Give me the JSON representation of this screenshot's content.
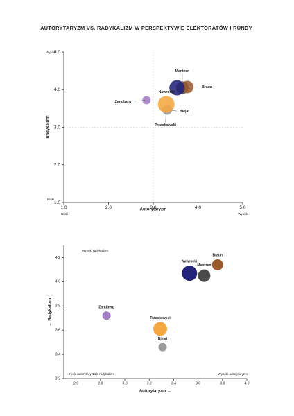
{
  "title": "AUTORYTARYZM VS. RADYKALIZM W PERSPEKTYWIE ELEKTORATÓW I RUNDY",
  "chart_data": [
    {
      "type": "bubble",
      "xlabel": "Autorytaryzm",
      "ylabel": "Radykalizm",
      "xlim": [
        1,
        5
      ],
      "ylim": [
        1,
        5
      ],
      "xticks": [
        {
          "value": 1,
          "label": "1.0"
        },
        {
          "value": 2,
          "label": "2.0"
        },
        {
          "value": 3,
          "label": "3.0"
        },
        {
          "value": 4,
          "label": "4.0"
        },
        {
          "value": 5,
          "label": "5.0"
        }
      ],
      "yticks": [
        {
          "value": 1,
          "label": "1.0"
        },
        {
          "value": 2,
          "label": "2.0"
        },
        {
          "value": 3,
          "label": "3.0"
        },
        {
          "value": 4,
          "label": "4.0"
        },
        {
          "value": 5,
          "label": "5.0"
        }
      ],
      "midlines": {
        "x": 3,
        "y": 3
      },
      "corner_labels": [
        "Wysoki",
        "Niski",
        "Niski",
        "Wysoki"
      ],
      "points": [
        {
          "name": "Mentzen",
          "color": "#454545",
          "x": 3.65,
          "y": 4.05,
          "size": 9
        },
        {
          "name": "Braun",
          "color": "#9a5a2c",
          "x": 3.76,
          "y": 4.07,
          "size": 9
        },
        {
          "name": "Nawrocki",
          "color": "#24237a",
          "x": 3.53,
          "y": 4.05,
          "size": 11
        },
        {
          "name": "Zandberg",
          "color": "#a07cc2",
          "x": 2.85,
          "y": 3.72,
          "size": 6
        },
        {
          "name": "Biejat",
          "color": "#9a9a9a",
          "x": 3.31,
          "y": 3.46,
          "size": 7
        },
        {
          "name": "Trzaskowski",
          "color": "#f5a742",
          "x": 3.29,
          "y": 3.61,
          "size": 12
        }
      ]
    },
    {
      "type": "bubble",
      "xlabel": "Autorytaryzm →",
      "ylabel": "← Radykalizm",
      "xlim": [
        2.5,
        4
      ],
      "ylim": [
        3.2,
        4.3
      ],
      "xticks": [
        2.6,
        2.8,
        {
          "value": 3,
          "label": "3.0"
        },
        3.2,
        3.4,
        3.6,
        3.8,
        {
          "value": 4,
          "label": "4.0"
        }
      ],
      "yticks": [
        3.2,
        3.4,
        3.6,
        3.8,
        {
          "value": 4,
          "label": "4.0"
        },
        4.2
      ],
      "corner_labels": [
        "Wysoki radykalizm",
        "Niski autorytaryzm",
        "Niski radykalizm",
        "Wysoki autorytaryzm"
      ],
      "points": [
        {
          "name": "Braun",
          "color": "#9a5a2c",
          "x": 3.76,
          "y": 4.14,
          "size": 8
        },
        {
          "name": "Mentzen",
          "color": "#4a4a4a",
          "x": 3.65,
          "y": 4.05,
          "size": 9
        },
        {
          "name": "Nawrocki",
          "color": "#24237a",
          "x": 3.53,
          "y": 4.07,
          "size": 11
        },
        {
          "name": "Zandberg",
          "color": "#a07cc2",
          "x": 2.85,
          "y": 3.72,
          "size": 6
        },
        {
          "name": "Trzaskowski",
          "color": "#f5a742",
          "x": 3.29,
          "y": 3.61,
          "size": 10
        },
        {
          "name": "Biejat",
          "color": "#9a9a9a",
          "x": 3.31,
          "y": 3.46,
          "size": 6
        }
      ]
    }
  ]
}
